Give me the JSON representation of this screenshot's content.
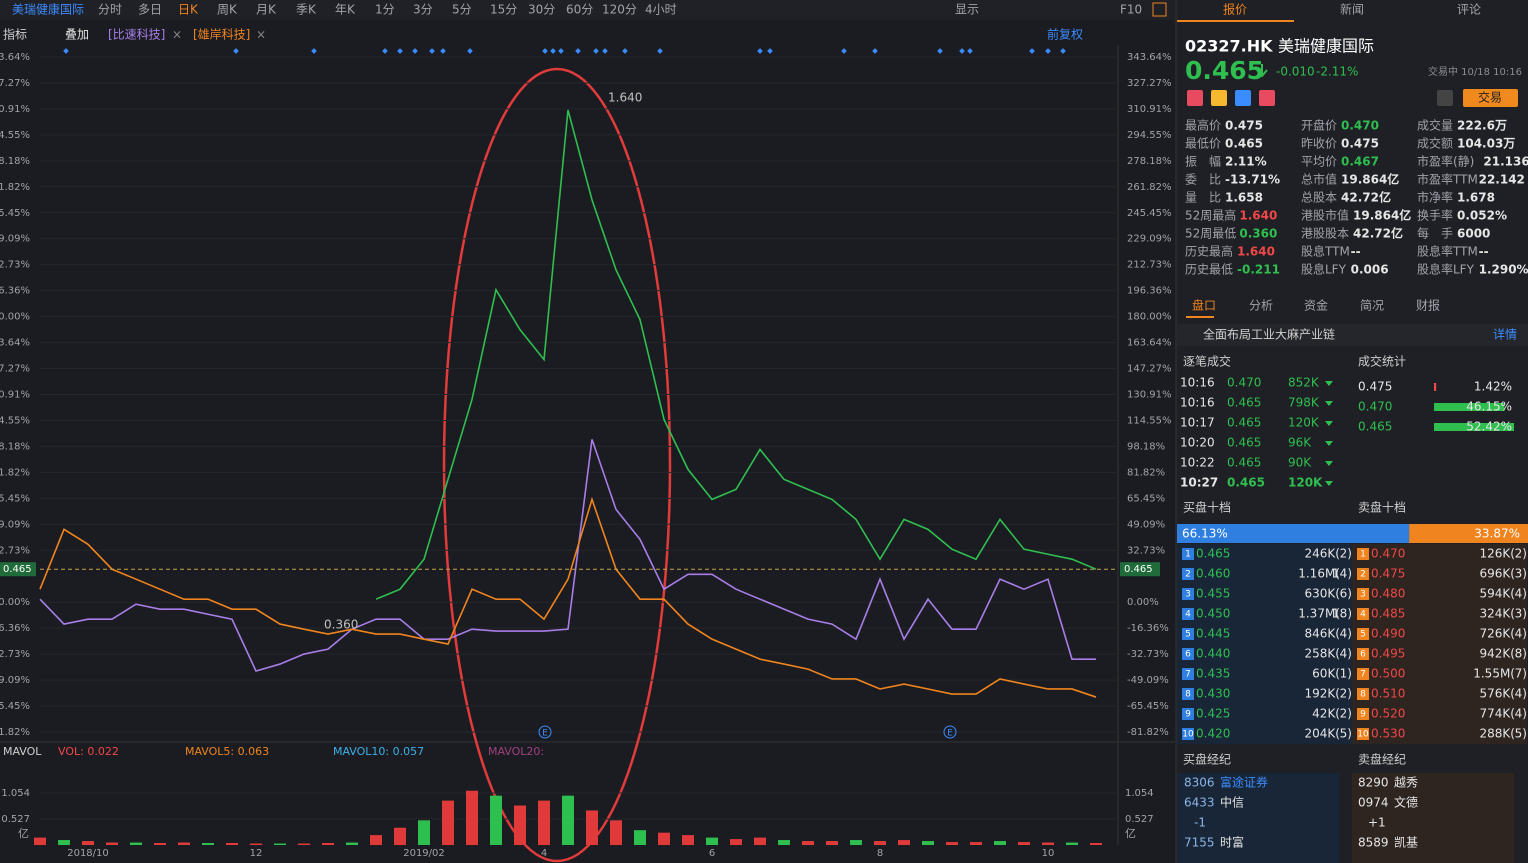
{
  "toolbar": {
    "stock": "美瑞健康国际",
    "periods": [
      "分时",
      "多日",
      "日K",
      "周K",
      "月K",
      "季K",
      "年K",
      "1分",
      "3分",
      "5分",
      "15分",
      "30分",
      "60分",
      "120分",
      "4小时"
    ],
    "display": "显示",
    "f10": "F10"
  },
  "chart_header": {
    "indicator": "指标",
    "overlay": "叠加",
    "overlay_1": "[比速科技]",
    "overlay_2": "[雄岸科技]",
    "close": "×",
    "adjust": "前复权"
  },
  "chart": {
    "type": "line",
    "ylim": [
      -81.82,
      343.64
    ],
    "yticks": [
      {
        "value": 343.64,
        "label": "343.64%"
      },
      {
        "value": 327.27,
        "label": "327.27%"
      },
      {
        "value": 310.91,
        "label": "310.91%"
      },
      {
        "value": 294.55,
        "label": "294.55%"
      },
      {
        "value": 278.18,
        "label": "278.18%"
      },
      {
        "value": 261.82,
        "label": "261.82%"
      },
      {
        "value": 245.45,
        "label": "245.45%"
      },
      {
        "value": 229.09,
        "label": "229.09%"
      },
      {
        "value": 212.73,
        "label": "212.73%"
      },
      {
        "value": 196.36,
        "label": "196.36%"
      },
      {
        "value": 180,
        "label": "180.00%"
      },
      {
        "value": 163.64,
        "label": "163.64%"
      },
      {
        "value": 147.27,
        "label": "147.27%"
      },
      {
        "value": 130.91,
        "label": "130.91%"
      },
      {
        "value": 114.55,
        "label": "114.55%"
      },
      {
        "value": 98.18,
        "label": "98.18%"
      },
      {
        "value": 81.82,
        "label": "81.82%"
      },
      {
        "value": 65.45,
        "label": "65.45%"
      },
      {
        "value": 49.09,
        "label": "49.09%"
      },
      {
        "value": 32.73,
        "label": "32.73%"
      },
      {
        "value": 0,
        "label": "0.00%"
      },
      {
        "value": -16.36,
        "label": "-16.36%"
      },
      {
        "value": -32.73,
        "label": "-32.73%"
      },
      {
        "value": -49.09,
        "label": "-49.09%"
      },
      {
        "value": -65.45,
        "label": "-65.45%"
      },
      {
        "value": -81.82,
        "label": "-81.82%"
      }
    ],
    "categories": [
      null,
      null,
      "2018/10",
      null,
      null,
      null,
      null,
      null,
      null,
      "12",
      null,
      null,
      null,
      null,
      null,
      null,
      "2019/02",
      null,
      null,
      null,
      null,
      "4",
      null,
      null,
      null,
      null,
      null,
      null,
      "6",
      null,
      null,
      null,
      null,
      null,
      null,
      "8",
      null,
      null,
      null,
      null,
      null,
      null,
      "10",
      null,
      null
    ],
    "series": [
      {
        "name": "美瑞健康国际",
        "color": "#2fbf4f",
        "values": [
          null,
          null,
          null,
          null,
          null,
          null,
          null,
          null,
          null,
          null,
          null,
          null,
          null,
          null,
          1.9,
          8.2,
          27.1,
          77.4,
          127.8,
          196.9,
          171.8,
          152.9,
          310.2,
          253.6,
          209.5,
          178.1,
          115.2,
          83.7,
          64.8,
          71.1,
          96.3,
          77.4,
          71.1,
          64.8,
          52.2,
          27.1,
          52.2,
          45.9,
          33.4,
          27.1,
          52.2,
          33.4,
          30.2,
          27.1,
          20.8
        ]
      },
      {
        "name": "比速科技",
        "color": "#a77ee8",
        "values": [
          1.9,
          -13.8,
          -10.7,
          -10.7,
          -1.3,
          -4.4,
          -4.4,
          -7.6,
          -10.7,
          -43.4,
          -39.0,
          -32.7,
          -29.6,
          -17.0,
          -10.7,
          -10.7,
          -23.3,
          -23.3,
          -17.0,
          -18.2,
          -18.2,
          -18.2,
          -17.0,
          102.6,
          58.5,
          39.6,
          8.2,
          17.6,
          17.6,
          8.2,
          1.9,
          -4.4,
          -10.7,
          -13.8,
          -23.3,
          14.5,
          -23.3,
          1.9,
          -17.0,
          -17.0,
          14.5,
          8.2,
          14.5,
          -35.9,
          -35.9
        ]
      },
      {
        "name": "雄岸科技",
        "color": "#f0841e",
        "values": [
          8.2,
          45.9,
          36.5,
          20.8,
          14.5,
          8.2,
          1.9,
          1.9,
          -4.4,
          -4.4,
          -13.8,
          -17.0,
          -20.1,
          -17.0,
          -20.1,
          -20.1,
          -23.3,
          -26.4,
          8.2,
          1.9,
          1.9,
          -10.7,
          14.5,
          64.8,
          20.8,
          1.9,
          1.9,
          -13.8,
          -23.3,
          -29.6,
          -35.9,
          -39.0,
          -42.2,
          -48.4,
          -48.4,
          -54.7,
          -51.6,
          -54.7,
          -57.9,
          -57.9,
          -48.4,
          -51.6,
          -54.7,
          -54.7,
          -59.8
        ]
      }
    ],
    "last_price": "0.465",
    "high_label": "1.640",
    "low_label": "0.360",
    "events": [
      "E",
      "E"
    ],
    "volume": {
      "title": "MAVOL",
      "vol": "VOL: 0.022",
      "ma5": "MAVOL5: 0.063",
      "ma10": "MAVOL10: 0.057",
      "ma20": "MAVOL20:",
      "unit": "亿",
      "color": "#e03a3a",
      "ylim": [
        0,
        1.52
      ],
      "yticks": [
        0.527,
        1.054
      ],
      "values": [
        0.15,
        0.1,
        0.08,
        0.05,
        0.05,
        0.04,
        0.05,
        0.04,
        0.04,
        0.03,
        0.03,
        0.03,
        0.04,
        0.05,
        0.2,
        0.35,
        0.5,
        0.9,
        1.1,
        1.0,
        0.8,
        0.9,
        1.0,
        0.7,
        0.5,
        0.3,
        0.25,
        0.2,
        0.15,
        0.12,
        0.15,
        0.1,
        0.08,
        0.08,
        0.1,
        0.08,
        0.1,
        0.08,
        0.06,
        0.06,
        0.08,
        0.06,
        0.05,
        0.05,
        0.04
      ]
    }
  },
  "panel": {
    "tabs": [
      "报价",
      "新闻",
      "评论"
    ],
    "code": "02327.HK",
    "name": "美瑞健康国际",
    "price": "0.465",
    "change": "-0.010",
    "change_pct": "-2.11%",
    "status": "交易中 10/18 10:16",
    "trade": "交易",
    "stats": [
      [
        [
          "最高价",
          "0.475",
          "#e6e6e6"
        ],
        [
          "最低价",
          "0.465",
          "#e6e6e6"
        ],
        [
          "振　幅",
          "2.11%",
          "#e6e6e6"
        ],
        [
          "委　比",
          "-13.71%",
          "#e6e6e6"
        ],
        [
          "量　比",
          "1.658",
          "#e6e6e6"
        ],
        [
          "52周最高",
          "1.640",
          "#f04848"
        ],
        [
          "52周最低",
          "0.360",
          "#2fbf4f"
        ],
        [
          "历史最高",
          "1.640",
          "#f04848"
        ],
        [
          "历史最低",
          "-0.211",
          "#2fbf4f"
        ]
      ],
      [
        [
          "开盘价",
          "0.470",
          "#2fbf4f"
        ],
        [
          "昨收价",
          "0.475",
          "#e6e6e6"
        ],
        [
          "平均价",
          "0.467",
          "#2fbf4f"
        ],
        [
          "总市值",
          "19.864亿",
          "#e6e6e6"
        ],
        [
          "总股本",
          "42.72亿",
          "#e6e6e6"
        ],
        [
          "港股市值",
          "19.864亿",
          "#e6e6e6"
        ],
        [
          "港股股本",
          "42.72亿",
          "#e6e6e6"
        ],
        [
          "股息TTM",
          "--",
          "#e6e6e6"
        ],
        [
          "股息LFY",
          "0.006",
          "#e6e6e6"
        ]
      ],
      [
        [
          "成交量",
          "222.6万",
          "#e6e6e6"
        ],
        [
          "成交额",
          "104.03万",
          "#e6e6e6"
        ],
        [
          "市盈率(静)",
          "21.136",
          "#e6e6e6"
        ],
        [
          "市盈率TTM",
          "22.142",
          "#e6e6e6"
        ],
        [
          "市净率",
          "1.678",
          "#e6e6e6"
        ],
        [
          "换手率",
          "0.052%",
          "#e6e6e6"
        ],
        [
          "每　手",
          "6000",
          "#e6e6e6"
        ],
        [
          "股息率TTM",
          "--",
          "#e6e6e6"
        ],
        [
          "股息率LFY",
          "1.290%",
          "#e6e6e6"
        ]
      ]
    ],
    "subtabs": [
      "盘口",
      "分析",
      "资金",
      "简况",
      "财报"
    ],
    "banner": "全面布局工业大麻产业链",
    "banner_link": "详情",
    "trades_title": "逐笔成交",
    "trades": [
      [
        "10:16",
        "0.470",
        "852K"
      ],
      [
        "10:16",
        "0.465",
        "798K"
      ],
      [
        "10:17",
        "0.465",
        "120K"
      ],
      [
        "10:20",
        "0.465",
        "96K"
      ],
      [
        "10:22",
        "0.465",
        "90K"
      ],
      [
        "10:27",
        "0.465",
        "120K"
      ]
    ],
    "deal_title": "成交统计",
    "deals": [
      {
        "price": "0.475",
        "value": 1.42,
        "label": "1.42%",
        "color": "#f04848"
      },
      {
        "price": "0.470",
        "value": 46.15,
        "label": "46.15%",
        "color": "#2fbf4f"
      },
      {
        "price": "0.465",
        "value": 52.42,
        "label": "52.42%",
        "color": "#2fbf4f"
      }
    ],
    "bid_title": "买盘十档",
    "ask_title": "卖盘十档",
    "bid_ratio": {
      "value": 66.13,
      "label": "66.13%"
    },
    "ask_ratio": {
      "value": 33.87,
      "label": "33.87%"
    },
    "bids": [
      [
        "1",
        "0.465",
        "246K(",
        "2)"
      ],
      [
        "2",
        "0.460",
        "1.16M(",
        "14)"
      ],
      [
        "3",
        "0.455",
        "630K(",
        "6)"
      ],
      [
        "4",
        "0.450",
        "1.37M(",
        "18)"
      ],
      [
        "5",
        "0.445",
        "846K(",
        "4)"
      ],
      [
        "6",
        "0.440",
        "258K(",
        "4)"
      ],
      [
        "7",
        "0.435",
        "60K(",
        "1)"
      ],
      [
        "8",
        "0.430",
        "192K(",
        "2)"
      ],
      [
        "9",
        "0.425",
        "42K(",
        "2)"
      ],
      [
        "10",
        "0.420",
        "204K(",
        "5)"
      ]
    ],
    "asks": [
      [
        "1",
        "0.470",
        "126K(",
        "2)"
      ],
      [
        "2",
        "0.475",
        "696K(",
        "3)"
      ],
      [
        "3",
        "0.480",
        "594K(",
        "4)"
      ],
      [
        "4",
        "0.485",
        "324K(",
        "3)"
      ],
      [
        "5",
        "0.490",
        "726K(",
        "4)"
      ],
      [
        "6",
        "0.495",
        "942K(",
        "8)"
      ],
      [
        "7",
        "0.500",
        "1.55M(",
        "7)"
      ],
      [
        "8",
        "0.510",
        "576K(",
        "4)"
      ],
      [
        "9",
        "0.520",
        "774K(",
        "4)"
      ],
      [
        "10",
        "0.530",
        "288K(",
        "5)"
      ]
    ],
    "bid_broker_title": "买盘经纪",
    "ask_broker_title": "卖盘经纪",
    "bid_brokers": [
      [
        "8306",
        "富途证券"
      ],
      [
        "6433",
        "中信"
      ],
      [
        "-1",
        ""
      ],
      [
        "7155",
        "时富"
      ]
    ],
    "ask_brokers": [
      [
        "8290",
        "越秀"
      ],
      [
        "0974",
        "文德"
      ],
      [
        "+1",
        ""
      ],
      [
        "8589",
        "凯基"
      ]
    ]
  }
}
